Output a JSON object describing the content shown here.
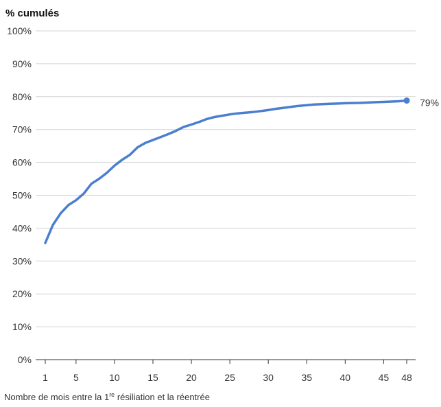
{
  "chart_data": {
    "type": "line",
    "ylabel": "% cumulés",
    "xlabel": {
      "before": "Nombre de mois entre la 1",
      "sup": "re",
      "after": " résiliation et la réentrée"
    },
    "ylim": [
      0,
      100
    ],
    "yticks": [
      0,
      10,
      20,
      30,
      40,
      50,
      60,
      70,
      80,
      90,
      100
    ],
    "ytick_labels": [
      "0%",
      "10%",
      "20%",
      "30%",
      "40%",
      "50%",
      "60%",
      "70%",
      "80%",
      "90%",
      "100%"
    ],
    "xlim": [
      1,
      48
    ],
    "xticks": [
      1,
      5,
      10,
      15,
      20,
      25,
      30,
      35,
      40,
      45,
      48
    ],
    "xtick_labels": [
      "1",
      "5",
      "10",
      "15",
      "20",
      "25",
      "30",
      "35",
      "40",
      "45",
      "48"
    ],
    "grid": true,
    "series": [
      {
        "color": "#4a7fcf",
        "x": [
          1,
          2,
          3,
          4,
          5,
          6,
          7,
          8,
          9,
          10,
          11,
          12,
          13,
          14,
          15,
          16,
          17,
          18,
          19,
          20,
          21,
          22,
          23,
          24,
          25,
          26,
          27,
          28,
          29,
          30,
          31,
          32,
          33,
          34,
          35,
          36,
          37,
          38,
          39,
          40,
          41,
          42,
          43,
          44,
          45,
          46,
          47,
          48
        ],
        "y": [
          35.5,
          41,
          44.5,
          47,
          48.5,
          50.5,
          53.5,
          55,
          56.8,
          59,
          60.8,
          62.3,
          64.6,
          65.9,
          66.8,
          67.7,
          68.6,
          69.6,
          70.8,
          71.5,
          72.3,
          73.2,
          73.8,
          74.2,
          74.6,
          74.9,
          75.1,
          75.3,
          75.6,
          75.9,
          76.3,
          76.6,
          76.9,
          77.2,
          77.4,
          77.6,
          77.7,
          77.8,
          77.9,
          78,
          78.05,
          78.1,
          78.2,
          78.3,
          78.4,
          78.5,
          78.6,
          78.8
        ],
        "end_label": "79%"
      }
    ]
  }
}
